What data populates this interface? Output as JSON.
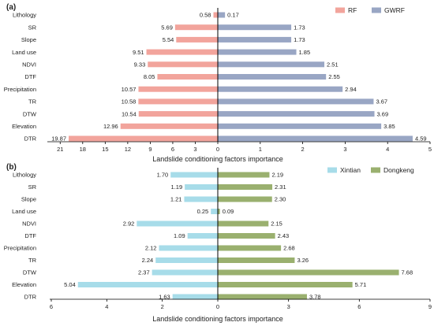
{
  "chart_data": [
    {
      "type": "bar",
      "panel_label": "(a)",
      "orientation": "horizontal-diverging",
      "categories": [
        "Lithology",
        "SR",
        "Slope",
        "Land use",
        "NDVI",
        "DTF",
        "Precipitation",
        "TR",
        "DTW",
        "Elevation",
        "DTR"
      ],
      "series": [
        {
          "name": "RF",
          "side": "left",
          "color": "#f2a49c",
          "values": [
            0.58,
            5.69,
            5.54,
            9.51,
            9.33,
            8.05,
            10.57,
            10.58,
            10.54,
            12.96,
            19.87
          ],
          "labels": [
            "0.58",
            "5.69",
            "5.54",
            "9.51",
            "9.33",
            "8.05",
            "10.57",
            "10.58",
            "10.54",
            "12.96",
            "19.87"
          ]
        },
        {
          "name": "GWRF",
          "side": "right",
          "color": "#99a6c4",
          "values": [
            0.17,
            1.73,
            1.73,
            1.85,
            2.51,
            2.55,
            2.94,
            3.67,
            3.69,
            3.85,
            4.59
          ],
          "labels": [
            "0.17",
            "1.73",
            "1.73",
            "1.85",
            "2.51",
            "2.55",
            "2.94",
            "3.67",
            "3.69",
            "3.85",
            "4.59"
          ]
        }
      ],
      "left_axis": {
        "min": 0,
        "max": 22.5,
        "ticks": [
          "21",
          "18",
          "15",
          "12",
          "9",
          "6",
          "3",
          "0"
        ],
        "tick_values": [
          21,
          18,
          15,
          12,
          9,
          6,
          3,
          0
        ]
      },
      "right_axis": {
        "min": 0,
        "max": 5,
        "ticks": [
          "1",
          "2",
          "3",
          "4",
          "5"
        ],
        "tick_values": [
          1,
          2,
          3,
          4,
          5
        ]
      },
      "xlabel": "Landslide conditioning factors importance",
      "legend_position": "top-right",
      "grid": false
    },
    {
      "type": "bar",
      "panel_label": "(b)",
      "orientation": "horizontal-diverging",
      "categories": [
        "Lithology",
        "SR",
        "Slope",
        "Land use",
        "NDVI",
        "DTF",
        "Precipitation",
        "TR",
        "DTW",
        "Elevation",
        "DTR"
      ],
      "series": [
        {
          "name": "Xintian",
          "side": "left",
          "color": "#a7dce9",
          "values": [
            1.7,
            1.19,
            1.21,
            0.25,
            2.92,
            1.09,
            2.12,
            2.24,
            2.37,
            5.04,
            1.63
          ],
          "labels": [
            "1.70",
            "1.19",
            "1.21",
            "0.25",
            "2.92",
            "1.09",
            "2.12",
            "2.24",
            "2.37",
            "5.04",
            "1.63"
          ]
        },
        {
          "name": "Dongkeng",
          "side": "right",
          "color": "#9ab06f",
          "values": [
            2.19,
            2.31,
            2.3,
            0.09,
            2.15,
            2.43,
            2.68,
            3.26,
            7.68,
            5.71,
            3.78
          ],
          "labels": [
            "2.19",
            "2.31",
            "2.30",
            "0.09",
            "2.15",
            "2.43",
            "2.68",
            "3.26",
            "7.68",
            "5.71",
            "3.78"
          ]
        }
      ],
      "left_axis": {
        "min": 0,
        "max": 6,
        "ticks": [
          "6",
          "4",
          "2",
          "0"
        ],
        "tick_values": [
          6,
          4,
          2,
          0
        ]
      },
      "right_axis": {
        "min": 0,
        "max": 9,
        "ticks": [
          "3",
          "6",
          "9"
        ],
        "tick_values": [
          3,
          6,
          9
        ]
      },
      "xlabel": "Landslide conditioning factors importance",
      "legend_position": "top-right",
      "grid": false
    }
  ]
}
